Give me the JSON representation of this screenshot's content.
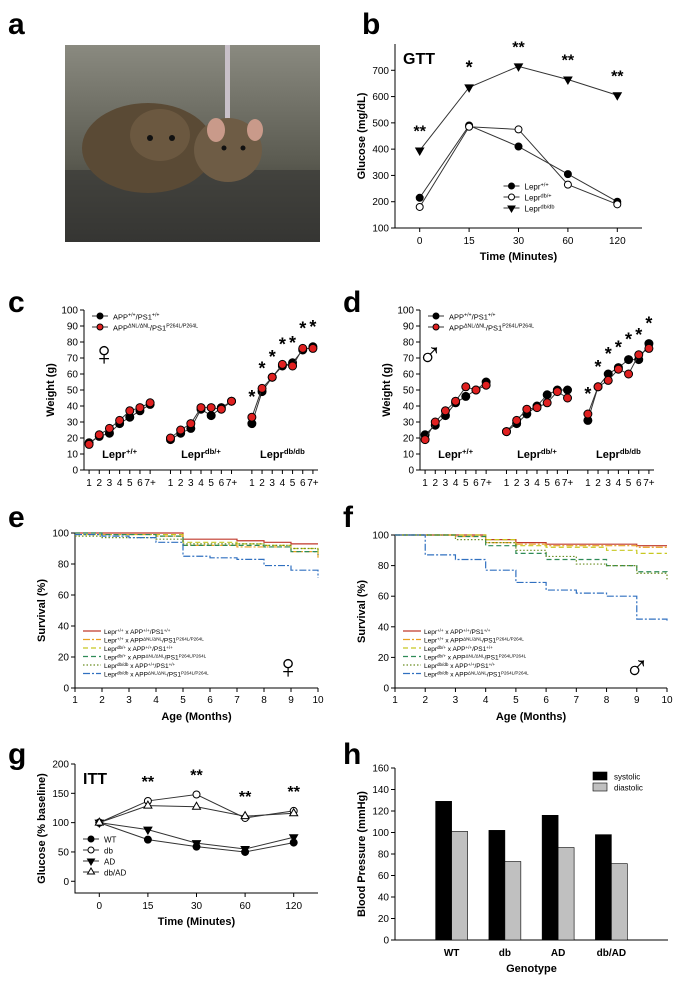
{
  "photo": {
    "panel": "a"
  },
  "chart_data": [
    {
      "type": "line",
      "panel": "b",
      "title": "GTT",
      "xlabel": "Time (Minutes)",
      "ylabel": "Glucose (mg/dL)",
      "categories": [
        "0",
        "15",
        "30",
        "60",
        "120"
      ],
      "ylim": [
        100,
        800
      ],
      "yticks": [
        100,
        200,
        300,
        400,
        500,
        600,
        700
      ],
      "legend": "lower-center",
      "annotations": [
        "**",
        "*",
        "**",
        "**",
        "**"
      ],
      "series": [
        {
          "name": [
            "Lepr",
            "+/+"
          ],
          "color": "#000000",
          "marker": "circle",
          "values": [
            215,
            490,
            410,
            305,
            200
          ]
        },
        {
          "name": [
            "Lepr",
            "db/+"
          ],
          "color": "#000000",
          "marker": "open-circle",
          "values": [
            180,
            485,
            475,
            265,
            190
          ]
        },
        {
          "name": [
            "Lepr",
            "db/db"
          ],
          "color": "#000000",
          "marker": "triangle-down",
          "values": [
            395,
            635,
            715,
            665,
            605
          ]
        }
      ]
    },
    {
      "type": "line",
      "panel": "c",
      "symbol": "♀",
      "ylabel": "Weight (g)",
      "categories": [
        "1",
        "2",
        "3",
        "4",
        "5",
        "6",
        "7+",
        null,
        "1",
        "2",
        "3",
        "4",
        "5",
        "6",
        "7+",
        null,
        "1",
        "2",
        "3",
        "4",
        "5",
        "6",
        "7+"
      ],
      "groups": [
        [
          "Lepr",
          "+/+"
        ],
        [
          "Lepr",
          "db/+"
        ],
        [
          "Lepr",
          "db/db"
        ]
      ],
      "ylim": [
        0,
        100
      ],
      "yticks": [
        0,
        10,
        20,
        30,
        40,
        50,
        60,
        70,
        80,
        90,
        100
      ],
      "legend": "upper-left",
      "annotations": [
        null,
        null,
        null,
        null,
        null,
        null,
        null,
        null,
        null,
        null,
        null,
        null,
        null,
        null,
        null,
        null,
        "*",
        "*",
        "*",
        "*",
        "*",
        "*",
        "*"
      ],
      "series": [
        {
          "name": [
            "APP",
            "+/+",
            "/PS1",
            "+/+"
          ],
          "color": "#000000",
          "marker": "circle",
          "values": [
            17,
            21,
            23,
            29,
            33,
            37,
            41,
            null,
            19,
            23,
            26,
            38,
            34,
            39,
            43,
            null,
            29,
            49,
            58,
            65,
            67,
            75,
            77
          ]
        },
        {
          "name": [
            "APP",
            "ΔNL/ΔNL",
            "/PS1",
            "P264L/P264L"
          ],
          "color": "#e02020",
          "marker": "circle",
          "values": [
            16,
            22,
            26,
            31,
            37,
            39,
            42,
            null,
            20,
            25,
            29,
            39,
            39,
            38,
            43,
            null,
            33,
            51,
            58,
            66,
            65,
            76,
            76
          ]
        }
      ]
    },
    {
      "type": "line",
      "panel": "d",
      "symbol": "♂",
      "ylabel": "Weight (g)",
      "categories": [
        "1",
        "2",
        "3",
        "4",
        "5",
        "6",
        "7+",
        null,
        "1",
        "2",
        "3",
        "4",
        "5",
        "6",
        "7+",
        null,
        "1",
        "2",
        "3",
        "4",
        "5",
        "6",
        "7+"
      ],
      "groups": [
        [
          "Lepr",
          "+/+"
        ],
        [
          "Lepr",
          "db/+"
        ],
        [
          "Lepr",
          "db/db"
        ]
      ],
      "ylim": [
        0,
        100
      ],
      "yticks": [
        0,
        10,
        20,
        30,
        40,
        50,
        60,
        70,
        80,
        90,
        100
      ],
      "legend": "upper-left",
      "annotations": [
        null,
        null,
        null,
        null,
        null,
        null,
        null,
        null,
        null,
        null,
        null,
        null,
        null,
        null,
        null,
        null,
        "*",
        "*",
        "*",
        "*",
        "*",
        "*",
        "*"
      ],
      "series": [
        {
          "name": [
            "APP",
            "+/+",
            "/PS1",
            "+/+"
          ],
          "color": "#000000",
          "marker": "circle",
          "values": [
            22,
            28,
            34,
            42,
            46,
            50,
            55,
            null,
            24,
            29,
            35,
            40,
            47,
            50,
            50,
            null,
            31,
            52,
            60,
            64,
            69,
            69,
            79
          ]
        },
        {
          "name": [
            "APP",
            "ΔNL/ΔNL",
            "/PS1",
            "P264L/P264L"
          ],
          "color": "#e02020",
          "marker": "circle",
          "values": [
            19,
            30,
            37,
            43,
            52,
            50,
            53,
            null,
            24,
            31,
            38,
            39,
            42,
            49,
            45,
            null,
            35,
            52,
            56,
            63,
            60,
            72,
            76
          ]
        }
      ]
    },
    {
      "type": "step",
      "panel": "e",
      "symbol": "♀",
      "xlabel": "Age (Months)",
      "ylabel": "Survival (%)",
      "x": [
        1,
        2,
        3,
        4,
        5,
        6,
        7,
        8,
        9,
        10
      ],
      "xlim": [
        1,
        10
      ],
      "xticks": [
        1,
        2,
        3,
        4,
        5,
        6,
        7,
        8,
        9,
        10
      ],
      "ylim": [
        0,
        100
      ],
      "yticks": [
        0,
        20,
        40,
        60,
        80,
        100
      ],
      "legend": "lower-left",
      "series": [
        {
          "name": [
            "Lepr",
            "+/+",
            " x APP",
            "+/+",
            "/PS1",
            "+/+"
          ],
          "color": "#c0392b",
          "dash": "solid",
          "values": [
            100,
            100,
            100,
            100,
            96,
            96,
            95,
            94,
            93,
            93
          ]
        },
        {
          "name": [
            "Lepr",
            "+/+",
            " x APP",
            "ΔNL/ΔNL",
            "/PS1",
            "P264L/P264L"
          ],
          "color": "#e8a020",
          "dash": "dashdot",
          "values": [
            99,
            99,
            99,
            98,
            92,
            92,
            91,
            91,
            88,
            84
          ]
        },
        {
          "name": [
            "Lepr",
            "db/+",
            " x APP",
            "+/+",
            "/PS1",
            "+/+"
          ],
          "color": "#c8c820",
          "dash": "dashed",
          "values": [
            99,
            99,
            99,
            99,
            94,
            94,
            93,
            92,
            90,
            87
          ]
        },
        {
          "name": [
            "Lepr",
            "db/+",
            " x APP",
            "ΔNL/ΔNL",
            "/PS1",
            "P264L/P264L"
          ],
          "color": "#2e8b57",
          "dash": "dashed",
          "values": [
            100,
            99,
            99,
            98,
            92,
            92,
            92,
            91,
            88,
            86
          ]
        },
        {
          "name": [
            "Lepr",
            "db/db",
            " x APP",
            "+/+",
            "/PS1",
            "+/+"
          ],
          "color": "#6b8e23",
          "dash": "dotted",
          "values": [
            98,
            97,
            97,
            96,
            93,
            93,
            93,
            92,
            90,
            88
          ]
        },
        {
          "name": [
            "Lepr",
            "db/db",
            " x APP",
            "ΔNL/ΔNL",
            "/PS1",
            "P264L/P264L"
          ],
          "color": "#3070c0",
          "dash": "dashdot",
          "values": [
            99,
            98,
            97,
            94,
            85,
            84,
            83,
            79,
            76,
            71
          ]
        }
      ]
    },
    {
      "type": "step",
      "panel": "f",
      "symbol": "♂",
      "xlabel": "Age (Months)",
      "ylabel": "Survival (%)",
      "x": [
        1,
        2,
        3,
        4,
        5,
        6,
        7,
        8,
        9,
        10
      ],
      "xlim": [
        1,
        10
      ],
      "xticks": [
        1,
        2,
        3,
        4,
        5,
        6,
        7,
        8,
        9,
        10
      ],
      "ylim": [
        0,
        100
      ],
      "yticks": [
        0,
        20,
        40,
        60,
        80,
        100
      ],
      "legend": "lower-left",
      "series": [
        {
          "name": [
            "Lepr",
            "+/+",
            " x APP",
            "+/+",
            "/PS1",
            "+/+"
          ],
          "color": "#c0392b",
          "dash": "solid",
          "values": [
            100,
            100,
            100,
            97,
            95,
            94,
            94,
            94,
            93,
            93
          ]
        },
        {
          "name": [
            "Lepr",
            "+/+",
            " x APP",
            "ΔNL/ΔNL",
            "/PS1",
            "P264L/P264L"
          ],
          "color": "#e8a020",
          "dash": "dashdot",
          "values": [
            100,
            100,
            99,
            95,
            94,
            93,
            93,
            93,
            92,
            92
          ]
        },
        {
          "name": [
            "Lepr",
            "db/+",
            " x APP",
            "+/+",
            "/PS1",
            "+/+"
          ],
          "color": "#c8c820",
          "dash": "dashed",
          "values": [
            100,
            100,
            100,
            97,
            93,
            92,
            92,
            90,
            88,
            88
          ]
        },
        {
          "name": [
            "Lepr",
            "db/+",
            " x APP",
            "ΔNL/ΔNL",
            "/PS1",
            "P264L/P264L"
          ],
          "color": "#2e8b57",
          "dash": "dashed",
          "values": [
            100,
            100,
            99,
            93,
            88,
            84,
            84,
            80,
            76,
            75
          ]
        },
        {
          "name": [
            "Lepr",
            "db/db",
            " x APP",
            "+/+",
            "/PS1",
            "+/+"
          ],
          "color": "#6b8e23",
          "dash": "dotted",
          "values": [
            100,
            100,
            97,
            95,
            90,
            86,
            81,
            80,
            75,
            71
          ]
        },
        {
          "name": [
            "Lepr",
            "db/db",
            " x APP",
            "ΔNL/ΔNL",
            "/PS1",
            "P264L/P264L"
          ],
          "color": "#3070c0",
          "dash": "dashdot",
          "values": [
            100,
            87,
            84,
            77,
            69,
            64,
            62,
            60,
            45,
            44
          ]
        }
      ]
    },
    {
      "type": "line",
      "panel": "g",
      "title": "ITT",
      "xlabel": "Time (Minutes)",
      "ylabel": "Glucose (% baseline)",
      "categories": [
        "0",
        "15",
        "30",
        "60",
        "120"
      ],
      "ylim": [
        -20,
        200
      ],
      "yticks": [
        0,
        50,
        100,
        150,
        200
      ],
      "legend": "lower-left",
      "annotations": [
        null,
        "**",
        "**",
        "**",
        "**"
      ],
      "series": [
        {
          "name": "WT",
          "color": "#000000",
          "marker": "circle",
          "values": [
            100,
            71,
            59,
            50,
            66
          ]
        },
        {
          "name": "db",
          "color": "#000000",
          "marker": "open-circle",
          "values": [
            100,
            137,
            148,
            108,
            120
          ]
        },
        {
          "name": "AD",
          "color": "#000000",
          "marker": "triangle-down",
          "values": [
            100,
            88,
            65,
            55,
            75
          ]
        },
        {
          "name": "db/AD",
          "color": "#000000",
          "marker": "open-triangle",
          "values": [
            100,
            129,
            127,
            111,
            116
          ]
        }
      ]
    },
    {
      "type": "bar",
      "panel": "h",
      "xlabel": "Genotype",
      "ylabel": "Blood Pressure (mmHg)",
      "categories": [
        "WT",
        "db",
        "AD",
        "db/AD"
      ],
      "ylim": [
        0,
        160
      ],
      "yticks": [
        0,
        20,
        40,
        60,
        80,
        100,
        120,
        140,
        160
      ],
      "legend": "upper-right",
      "series": [
        {
          "name": "systolic",
          "color": "#000000",
          "values": [
            129,
            102,
            116,
            98
          ]
        },
        {
          "name": "diastolic",
          "color": "#c0c0c0",
          "values": [
            101,
            73,
            86,
            71
          ]
        }
      ]
    }
  ]
}
